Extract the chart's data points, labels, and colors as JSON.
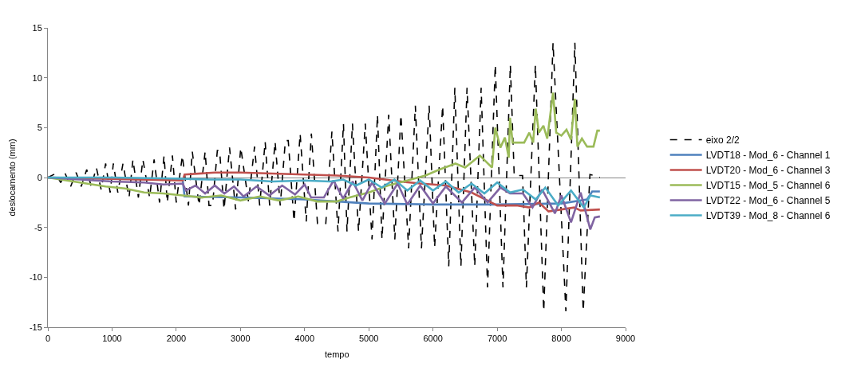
{
  "chart_data": {
    "type": "line",
    "xlabel": "tempo",
    "ylabel": "deslocamento (mm)",
    "xlim": [
      0,
      9000
    ],
    "xticks": [
      0,
      1000,
      2000,
      3000,
      4000,
      5000,
      6000,
      7000,
      8000,
      9000
    ],
    "ylim": [
      -15,
      15
    ],
    "yticks": [
      -15,
      -10,
      -5,
      0,
      5,
      10,
      15
    ],
    "legend": "right",
    "marker": "none",
    "series": [
      {
        "name": "eixo 2/2",
        "color": "#000000",
        "line_style": "dashed",
        "x": [
          0,
          120,
          200,
          270,
          355,
          440,
          520,
          605,
          675,
          755,
          830,
          900,
          970,
          1020,
          1090,
          1170,
          1265,
          1325,
          1410,
          1480,
          1585,
          1655,
          1740,
          1810,
          1860,
          1940,
          2000,
          2095,
          2190,
          2250,
          2355,
          2450,
          2510,
          2565,
          2640,
          2675,
          2745,
          2830,
          2925,
          3005,
          3125,
          3220,
          3300,
          3385,
          3455,
          3540,
          3620,
          3700,
          3745,
          3835,
          3930,
          4025,
          4105,
          4200,
          4330,
          4425,
          4520,
          4605,
          4660,
          4745,
          4840,
          4945,
          5050,
          5135,
          5205,
          5310,
          5405,
          5500,
          5620,
          5725,
          5820,
          5940,
          6025,
          6150,
          6245,
          6340,
          6435,
          6530,
          6650,
          6750,
          6850,
          6970,
          7090,
          7205,
          7265,
          7395,
          7455,
          7595,
          7725,
          7870,
          8070,
          8210,
          8340,
          8445,
          8520,
          8600
        ],
        "values": [
          0,
          0.4,
          -0.5,
          0.4,
          -0.9,
          0.5,
          -0.9,
          0.8,
          -0.9,
          1.0,
          -1.2,
          1.4,
          -1.5,
          1.4,
          -1.5,
          1.4,
          -2.0,
          1.8,
          -2.0,
          1.8,
          -2.0,
          1.8,
          -2.5,
          2.2,
          -2.5,
          2.2,
          -2.5,
          2.2,
          -2.8,
          2.6,
          -2.8,
          2.6,
          -2.8,
          -2.8,
          2.7,
          2.7,
          -3.2,
          3.0,
          -3.2,
          3.0,
          -2.4,
          3.1,
          -2.8,
          3.6,
          -2.8,
          3.6,
          -2.8,
          3.7,
          3.7,
          -4.4,
          4.4,
          -4.4,
          4.4,
          -4.6,
          -4.6,
          4.6,
          -5.4,
          5.4,
          -5.4,
          5.4,
          -5.4,
          5.4,
          -6.2,
          6.3,
          -6.2,
          6.3,
          -6.2,
          6.3,
          -7.1,
          7.2,
          -7.1,
          7.2,
          -7.0,
          7.2,
          -8.9,
          9.0,
          -8.9,
          9.0,
          -8.9,
          9.0,
          -11.0,
          11.3,
          -11.0,
          11.3,
          0.2,
          0.2,
          -11.0,
          11.3,
          -13.4,
          13.5,
          -13.4,
          13.5,
          -13.4,
          0.3,
          0.2,
          0
        ]
      },
      {
        "name": "LVDT18 - Mod_6 - Channel 1",
        "color": "#4f81bd",
        "x": [
          0,
          1000,
          2100,
          2130,
          3000,
          4000,
          5000,
          6000,
          7000,
          8000,
          8400,
          8480,
          8600
        ],
        "values": [
          0,
          -0.1,
          -0.2,
          -1.9,
          -2.0,
          -2.2,
          -2.6,
          -2.7,
          -2.7,
          -2.6,
          -2.2,
          -1.4,
          -1.4
        ]
      },
      {
        "name": "LVDT20 - Mod_6 - Channel 3",
        "color": "#c0504d",
        "x": [
          0,
          2100,
          2130,
          2600,
          3000,
          3500,
          4000,
          4500,
          5000,
          5500,
          5800,
          6200,
          6600,
          7000,
          7300,
          7500,
          7650,
          7800,
          8000,
          8200,
          8300,
          8600
        ],
        "values": [
          0,
          -0.3,
          0.3,
          0.5,
          0.5,
          0.4,
          0.3,
          0.2,
          0,
          -0.4,
          -0.6,
          -0.8,
          -1.5,
          -2.8,
          -2.8,
          -3.0,
          -2.5,
          -3.4,
          -3.2,
          -3.0,
          -3.3,
          -3.2
        ]
      },
      {
        "name": "LVDT15 - Mod_5 - Channel 6",
        "color": "#9bbb59",
        "x": [
          0,
          300,
          600,
          900,
          1200,
          1500,
          1800,
          2100,
          2400,
          2700,
          3000,
          3300,
          3600,
          3900,
          4200,
          4500,
          4700,
          5000,
          5300,
          5600,
          5880,
          6100,
          6350,
          6500,
          6730,
          6920,
          6970,
          7050,
          7120,
          7180,
          7200,
          7240,
          7420,
          7500,
          7560,
          7600,
          7650,
          7720,
          7780,
          7870,
          7920,
          8000,
          8080,
          8150,
          8210,
          8250,
          8320,
          8400,
          8500,
          8560,
          8600
        ],
        "values": [
          0,
          -0.3,
          -0.6,
          -0.9,
          -1.1,
          -1.5,
          -1.6,
          -1.8,
          -2.0,
          -1.8,
          -2.3,
          -1.9,
          -2.3,
          -1.9,
          -2.4,
          -2.4,
          -2.0,
          -1.5,
          -0.8,
          -0.3,
          0.2,
          0.8,
          1.4,
          1.0,
          2.2,
          1.0,
          5.0,
          3.0,
          4.0,
          2.0,
          6.0,
          3.5,
          3.5,
          4.5,
          3.5,
          6.9,
          4.5,
          5.2,
          3.9,
          8.5,
          4.5,
          4.2,
          4.8,
          3.8,
          7.9,
          3.1,
          3.9,
          3.1,
          3.1,
          4.7,
          4.7
        ]
      },
      {
        "name": "LVDT22 - Mod_6 - Channel 5",
        "color": "#8064a2",
        "x": [
          0,
          500,
          1000,
          1500,
          1800,
          2100,
          2150,
          2300,
          2450,
          2600,
          2750,
          2900,
          3050,
          3250,
          3450,
          3650,
          3850,
          4000,
          4100,
          4300,
          4450,
          4600,
          4750,
          4900,
          5050,
          5250,
          5450,
          5600,
          5800,
          6000,
          6200,
          6450,
          6650,
          6850,
          7050,
          7200,
          7400,
          7550,
          7700,
          7900,
          8000,
          8150,
          8300,
          8450,
          8520,
          8600
        ],
        "values": [
          0,
          -0.2,
          -0.4,
          -0.5,
          -0.7,
          -0.6,
          -1.3,
          -0.8,
          -1.6,
          -0.8,
          -1.6,
          -0.9,
          -1.9,
          -0.9,
          -1.8,
          -0.8,
          -1.7,
          -0.7,
          -2.0,
          -2.0,
          -0.3,
          -2.1,
          -0.4,
          -2.3,
          -0.5,
          -2.6,
          -0.6,
          -2.7,
          -0.8,
          -2.6,
          -0.9,
          -2.5,
          -1.0,
          -2.5,
          -1.0,
          -1.6,
          -1.6,
          -3.0,
          -1.2,
          -3.6,
          -1.8,
          -4.5,
          -1.5,
          -5.2,
          -4.0,
          -3.9
        ]
      },
      {
        "name": "LVDT39 - Mod_8 - Channel 6",
        "color": "#4bacc6",
        "x": [
          0,
          1000,
          2000,
          2500,
          3000,
          3500,
          4000,
          4400,
          4600,
          4800,
          5000,
          5200,
          5400,
          5600,
          5800,
          6000,
          6200,
          6400,
          6600,
          6800,
          7000,
          7200,
          7400,
          7600,
          7750,
          7950,
          8150,
          8350,
          8450,
          8600
        ],
        "values": [
          0,
          0,
          -0.1,
          -0.2,
          -0.2,
          -0.4,
          -0.3,
          -0.4,
          -0.2,
          -0.8,
          -0.2,
          -1.0,
          -0.2,
          -1.3,
          -0.3,
          -1.3,
          -0.4,
          -1.5,
          -0.6,
          -1.6,
          -0.5,
          -1.5,
          -1.2,
          -2.2,
          -1.0,
          -2.8,
          -1.3,
          -3.0,
          -1.8,
          -2.0
        ]
      }
    ]
  }
}
